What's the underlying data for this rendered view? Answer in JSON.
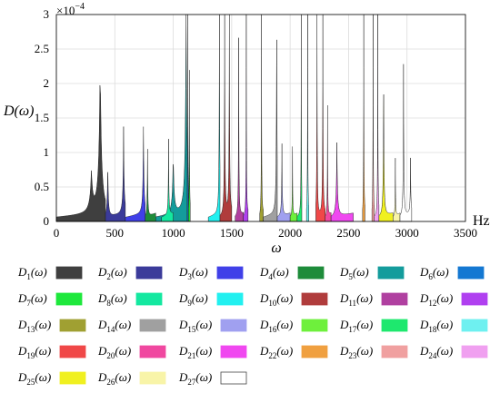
{
  "chart_data": {
    "type": "area",
    "title": "",
    "xlabel": "ω",
    "ylabel": "D(ω)",
    "x_unit": "Hz",
    "y_multiplier": "×10",
    "y_exponent": "−4",
    "xlim": [
      0,
      3500
    ],
    "ylim": [
      0,
      3
    ],
    "x_ticks": [
      "0",
      "500",
      "1000",
      "1500",
      "2000",
      "2500",
      "3000",
      "3500"
    ],
    "y_ticks": [
      "0",
      "0.5",
      "1",
      "1.5",
      "2",
      "2.5",
      "3"
    ],
    "grid": true,
    "legend_position": "below",
    "series": [
      {
        "name": "D1(ω)",
        "label_main": "D",
        "label_sub": "1",
        "color": "#3f3f3f",
        "x_range": [
          0,
          420
        ],
        "peaks": [
          [
            375,
            2.3
          ],
          [
            300,
            0.6
          ]
        ]
      },
      {
        "name": "D2(ω)",
        "label_main": "D",
        "label_sub": "2",
        "color": "#3b3b9a",
        "x_range": [
          420,
          590
        ],
        "peaks": [
          [
            575,
            1.3
          ],
          [
            440,
            0.8
          ]
        ]
      },
      {
        "name": "D3(ω)",
        "label_main": "D",
        "label_sub": "3",
        "color": "#4040e8",
        "x_range": [
          590,
          760
        ],
        "peaks": [
          [
            745,
            1.3
          ]
        ]
      },
      {
        "name": "D4(ω)",
        "label_main": "D",
        "label_sub": "4",
        "color": "#1e8c3a",
        "x_range": [
          760,
          850
        ],
        "peaks": [
          [
            780,
            1.1
          ]
        ]
      },
      {
        "name": "D5(ω)",
        "label_main": "D",
        "label_sub": "5",
        "color": "#149c9c",
        "x_range": [
          850,
          1120
        ],
        "peaks": [
          [
            1000,
            0.9
          ],
          [
            1110,
            3.0
          ]
        ]
      },
      {
        "name": "D6(ω)",
        "label_main": "D",
        "label_sub": "6",
        "color": "#1478d2",
        "x_range": [
          1120,
          1130
        ],
        "peaks": [
          [
            1125,
            3.0
          ]
        ]
      },
      {
        "name": "D7(ω)",
        "label_main": "D",
        "label_sub": "7",
        "color": "#1ee83c",
        "x_range": [
          1130,
          1145
        ],
        "peaks": [
          [
            1138,
            2.2
          ]
        ]
      },
      {
        "name": "D8(ω)",
        "label_main": "D",
        "label_sub": "8",
        "color": "#14e8a0",
        "x_range": [
          900,
          1000
        ],
        "peaks": [
          [
            960,
            1.1
          ]
        ]
      },
      {
        "name": "D9(ω)",
        "label_main": "D",
        "label_sub": "9",
        "color": "#22f0f0",
        "x_range": [
          1300,
          1400
        ],
        "peaks": [
          [
            1395,
            3.0
          ]
        ]
      },
      {
        "name": "D10(ω)",
        "label_main": "D",
        "label_sub": "10",
        "color": "#b03c3c",
        "x_range": [
          1400,
          1500
        ],
        "peaks": [
          [
            1440,
            3.0
          ],
          [
            1480,
            3.0
          ]
        ]
      },
      {
        "name": "D11(ω)",
        "label_main": "D",
        "label_sub": "11",
        "color": "#b040a0",
        "x_range": [
          1530,
          1600
        ],
        "peaks": [
          [
            1560,
            3.0
          ]
        ]
      },
      {
        "name": "D12(ω)",
        "label_main": "D",
        "label_sub": "12",
        "color": "#b040f0",
        "x_range": [
          1600,
          1640
        ],
        "peaks": [
          [
            1625,
            3.0
          ]
        ]
      },
      {
        "name": "D13(ω)",
        "label_main": "D",
        "label_sub": "13",
        "color": "#a0a032",
        "x_range": [
          1740,
          1770
        ],
        "peaks": [
          [
            1755,
            3.0
          ]
        ]
      },
      {
        "name": "D14(ω)",
        "label_main": "D",
        "label_sub": "14",
        "color": "#a0a0a0",
        "x_range": [
          1770,
          1890
        ],
        "peaks": [
          [
            1885,
            3.0
          ]
        ]
      },
      {
        "name": "D15(ω)",
        "label_main": "D",
        "label_sub": "15",
        "color": "#a0a0f0",
        "x_range": [
          1890,
          2000
        ],
        "peaks": [
          [
            1930,
            1.1
          ]
        ]
      },
      {
        "name": "D16(ω)",
        "label_main": "D",
        "label_sub": "16",
        "color": "#6ef03c",
        "x_range": [
          2000,
          2060
        ],
        "peaks": [
          [
            2020,
            1.2
          ]
        ]
      },
      {
        "name": "D17(ω)",
        "label_main": "D",
        "label_sub": "17",
        "color": "#1ee86e",
        "x_range": [
          2060,
          2100
        ],
        "peaks": [
          [
            2095,
            3.0
          ]
        ]
      },
      {
        "name": "D18(ω)",
        "label_main": "D",
        "label_sub": "18",
        "color": "#6ef0f0",
        "x_range": [
          2140,
          2160
        ],
        "peaks": [
          [
            2150,
            3.0
          ]
        ]
      },
      {
        "name": "D19(ω)",
        "label_main": "D",
        "label_sub": "19",
        "color": "#f04848",
        "x_range": [
          2220,
          2300
        ],
        "peaks": [
          [
            2230,
            3.0
          ],
          [
            2280,
            3.0
          ]
        ]
      },
      {
        "name": "D20(ω)",
        "label_main": "D",
        "label_sub": "20",
        "color": "#f048a0",
        "x_range": [
          2300,
          2350
        ],
        "peaks": [
          [
            2320,
            1.6
          ]
        ]
      },
      {
        "name": "D21(ω)",
        "label_main": "D",
        "label_sub": "21",
        "color": "#f048f0",
        "x_range": [
          2350,
          2540
        ],
        "peaks": [
          [
            2400,
            1.1
          ]
        ]
      },
      {
        "name": "D22(ω)",
        "label_main": "D",
        "label_sub": "22",
        "color": "#f0a040",
        "x_range": [
          2620,
          2640
        ],
        "peaks": [
          [
            2630,
            3.0
          ]
        ]
      },
      {
        "name": "D23(ω)",
        "label_main": "D",
        "label_sub": "23",
        "color": "#f0a0a0",
        "x_range": [
          2700,
          2720
        ],
        "peaks": [
          [
            2710,
            3.0
          ]
        ]
      },
      {
        "name": "D24(ω)",
        "label_main": "D",
        "label_sub": "24",
        "color": "#f0a0f0",
        "x_range": [
          2720,
          2760
        ],
        "peaks": [
          [
            2750,
            3.0
          ]
        ]
      },
      {
        "name": "D25(ω)",
        "label_main": "D",
        "label_sub": "25",
        "color": "#f0f020",
        "x_range": [
          2760,
          2880
        ],
        "peaks": [
          [
            2800,
            2.1
          ]
        ]
      },
      {
        "name": "D26(ω)",
        "label_main": "D",
        "label_sub": "26",
        "color": "#f8f4a8",
        "x_range": [
          2880,
          2940
        ],
        "peaks": [
          [
            2900,
            1.0
          ]
        ]
      },
      {
        "name": "D27(ω)",
        "label_main": "D",
        "label_sub": "27",
        "color": "#ffffff",
        "x_range": [
          2940,
          3040
        ],
        "peaks": [
          [
            2970,
            2.2
          ],
          [
            3030,
            0.8
          ]
        ]
      }
    ]
  }
}
